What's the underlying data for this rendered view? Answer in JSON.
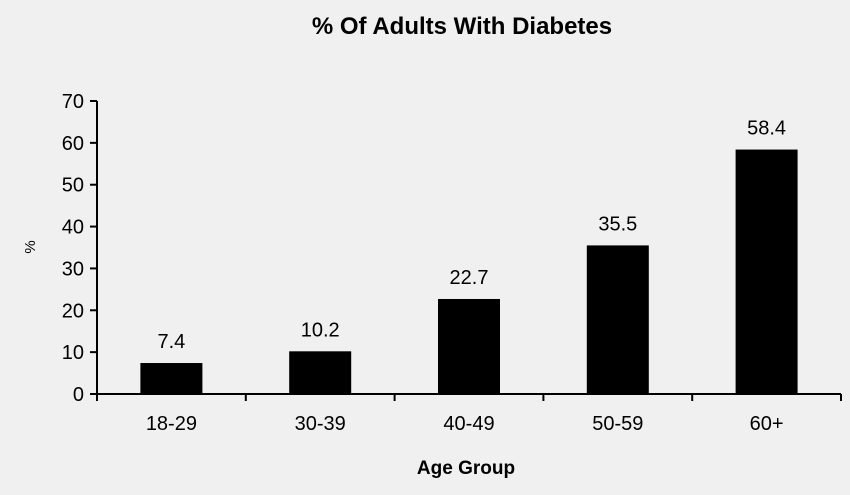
{
  "chart_data": {
    "type": "bar",
    "title": "% Of Adults With Diabetes",
    "xlabel": "Age Group",
    "ylabel": "%",
    "categories": [
      "18-29",
      "30-39",
      "40-49",
      "50-59",
      "60+"
    ],
    "values": [
      7.4,
      10.2,
      22.7,
      35.5,
      58.4
    ],
    "value_labels": [
      "7.4",
      "10.2",
      "22.7",
      "35.5",
      "58.4"
    ],
    "ylim": [
      0,
      70
    ],
    "yticks": [
      "0",
      "10",
      "20",
      "30",
      "40",
      "50",
      "60",
      "70"
    ],
    "grid": false,
    "legend": "none",
    "colors": {
      "bar": "#000000",
      "background": "#f0f0f0",
      "axis": "#000000",
      "text": "#000000"
    }
  }
}
